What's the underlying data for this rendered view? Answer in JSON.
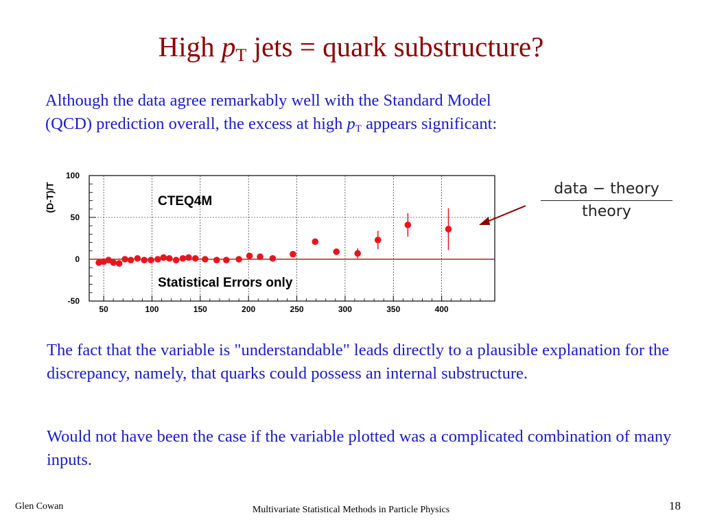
{
  "slide": {
    "title_pre": "High ",
    "title_italic": "p",
    "title_sub": "T",
    "title_post": " jets = quark substructure?",
    "para1_line1": "Although the data agree remarkably well with the Standard Model",
    "para1_line2_pre": "(QCD) prediction overall, the excess at high ",
    "para1_italic": "p",
    "para1_sub": "T",
    "para1_line2_post": " appears significant:",
    "formula_numerator": "data − theory",
    "formula_denominator": "theory",
    "para2": "The fact that the variable is \"understandable\" leads directly to a plausible explanation for the discrepancy, namely, that quarks could possess an internal substructure.",
    "para3": "Would not have been the case if the variable plotted was a complicated combination of many inputs.",
    "footer_author": "Glen Cowan",
    "footer_course": "Multivariate Statistical Methods in Particle Physics",
    "page_number": "18"
  },
  "colors": {
    "title": "#8b0000",
    "body_text": "#1a1ac8",
    "data_points": "#e8141e",
    "zero_line": "#b22222",
    "arrow": "#8b0000"
  },
  "chart_data": {
    "type": "scatter",
    "ylabel": "(D-T)/T",
    "xlabel": "",
    "xlim": [
      35,
      455
    ],
    "ylim": [
      -50,
      100
    ],
    "x_ticks": [
      "50",
      "100",
      "150",
      "200",
      "250",
      "300",
      "350",
      "400"
    ],
    "y_ticks": [
      "-50",
      "0",
      "50",
      "100"
    ],
    "annotations": [
      "CTEQ4M",
      "Statistical Errors only"
    ],
    "grid": true,
    "series": [
      {
        "points": [
          {
            "x": 45,
            "y": -4,
            "err": 0.8
          },
          {
            "x": 50,
            "y": -3,
            "err": 0.8
          },
          {
            "x": 55,
            "y": -1,
            "err": 0.8
          },
          {
            "x": 60,
            "y": -4,
            "err": 0.8
          },
          {
            "x": 66,
            "y": -5,
            "err": 0.8
          },
          {
            "x": 72,
            "y": 0,
            "err": 0.8
          },
          {
            "x": 78,
            "y": -1,
            "err": 0.8
          },
          {
            "x": 85,
            "y": 1,
            "err": 0.8
          },
          {
            "x": 92,
            "y": -1,
            "err": 0.8
          },
          {
            "x": 99,
            "y": -1,
            "err": 0.8
          },
          {
            "x": 106,
            "y": 0,
            "err": 0.8
          },
          {
            "x": 112,
            "y": 2,
            "err": 0.8
          },
          {
            "x": 118,
            "y": 1,
            "err": 0.8
          },
          {
            "x": 125,
            "y": -1,
            "err": 0.8
          },
          {
            "x": 132,
            "y": 1,
            "err": 0.8
          },
          {
            "x": 138,
            "y": 2,
            "err": 0.8
          },
          {
            "x": 145,
            "y": 1,
            "err": 0.8
          },
          {
            "x": 155,
            "y": 0,
            "err": 0.8
          },
          {
            "x": 167,
            "y": -1,
            "err": 1
          },
          {
            "x": 177,
            "y": -1,
            "err": 1
          },
          {
            "x": 190,
            "y": 0,
            "err": 1
          },
          {
            "x": 201,
            "y": 4,
            "err": 1.5
          },
          {
            "x": 212,
            "y": 3,
            "err": 1.5
          },
          {
            "x": 225,
            "y": 1,
            "err": 1.5
          },
          {
            "x": 246,
            "y": 6,
            "err": 2.5
          },
          {
            "x": 269,
            "y": 21,
            "err": 2.5
          },
          {
            "x": 291,
            "y": 9,
            "err": 3.5
          },
          {
            "x": 313,
            "y": 7,
            "err": 6
          },
          {
            "x": 334,
            "y": 23,
            "err": 11
          },
          {
            "x": 365,
            "y": 41,
            "err": 14
          },
          {
            "x": 407,
            "y": 36,
            "err": 25
          }
        ]
      }
    ]
  }
}
